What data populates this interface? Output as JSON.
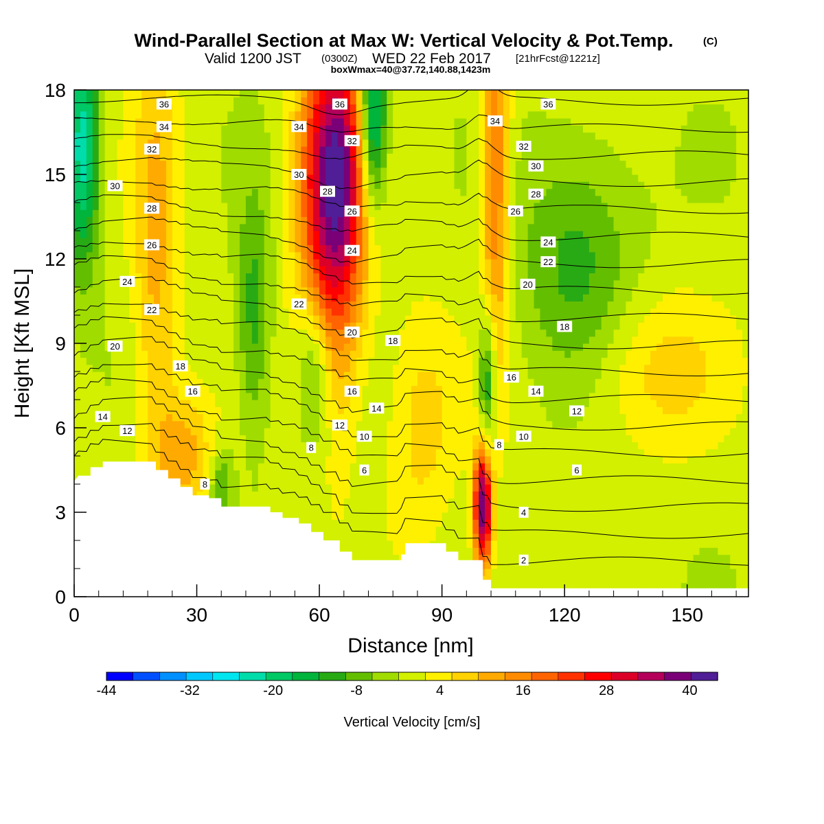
{
  "header": {
    "title": "Wind-Parallel Section at Max W: Vertical Velocity & Pot.Temp.",
    "title_mark": "(C)",
    "valid_prefix": "Valid 1200 JST",
    "valid_zulu": "(0300Z)",
    "valid_date": "WED 22 Feb 2017",
    "forecast": "[21hrFcst@1221z]",
    "box_info": "boxWmax=40@37.72,140.88,1423m"
  },
  "chart_data": {
    "type": "heatmap",
    "xlabel": "Distance [nm]",
    "ylabel": "Height [Kft MSL]",
    "xlim": [
      0,
      165
    ],
    "ylim": [
      0,
      18
    ],
    "x_ticks": [
      0,
      30,
      60,
      90,
      120,
      150
    ],
    "y_ticks": [
      0,
      3,
      6,
      9,
      12,
      15,
      18
    ],
    "colorbar": {
      "label": "Vertical Velocity [cm/s]",
      "levels": [
        -44,
        -40,
        -36,
        -32,
        -28,
        -24,
        -20,
        -16,
        -12,
        -8,
        -4,
        0,
        4,
        8,
        12,
        16,
        20,
        24,
        28,
        32,
        36,
        40,
        44
      ],
      "tick_labels": [
        -44,
        -32,
        -20,
        -8,
        4,
        16,
        28,
        40
      ],
      "colors": [
        "#0000ff",
        "#0050ff",
        "#0090ff",
        "#00c8ff",
        "#00e6f0",
        "#00dcaa",
        "#00c864",
        "#00b43c",
        "#28aa14",
        "#64be00",
        "#a0dc00",
        "#d2f000",
        "#fff000",
        "#ffd200",
        "#ffaa00",
        "#ff8c00",
        "#ff6400",
        "#ff3200",
        "#ff0000",
        "#dc0028",
        "#b4005a",
        "#7a0078",
        "#501e96"
      ]
    },
    "terrain": [
      [
        0,
        4.1
      ],
      [
        1,
        4.3
      ],
      [
        4,
        4.3
      ],
      [
        4,
        4.6
      ],
      [
        7,
        4.6
      ],
      [
        7,
        4.8
      ],
      [
        20,
        4.8
      ],
      [
        20,
        4.5
      ],
      [
        23,
        4.5
      ],
      [
        23,
        4.2
      ],
      [
        26,
        4.2
      ],
      [
        26,
        3.9
      ],
      [
        29,
        3.9
      ],
      [
        29,
        3.6
      ],
      [
        33,
        3.6
      ],
      [
        33,
        3.5
      ],
      [
        36,
        3.5
      ],
      [
        36,
        3.2
      ],
      [
        48,
        3.2
      ],
      [
        48,
        3.0
      ],
      [
        51,
        3.0
      ],
      [
        51,
        2.8
      ],
      [
        55,
        2.8
      ],
      [
        55,
        2.6
      ],
      [
        58,
        2.6
      ],
      [
        58,
        2.3
      ],
      [
        61,
        2.3
      ],
      [
        61,
        2.0
      ],
      [
        65,
        2.0
      ],
      [
        65,
        1.6
      ],
      [
        68,
        1.6
      ],
      [
        68,
        1.3
      ],
      [
        80,
        1.3
      ],
      [
        80,
        1.5
      ],
      [
        81,
        1.5
      ],
      [
        81,
        1.9
      ],
      [
        91,
        1.9
      ],
      [
        91,
        1.6
      ],
      [
        94,
        1.6
      ],
      [
        94,
        1.3
      ],
      [
        97,
        1.3
      ],
      [
        97,
        1.3
      ],
      [
        100,
        1.3
      ],
      [
        100,
        0.6
      ],
      [
        102,
        0.6
      ],
      [
        102,
        0.3
      ],
      [
        104,
        0.3
      ],
      [
        104,
        0.3
      ],
      [
        165,
        0.3
      ]
    ],
    "w_field_features": [
      {
        "x": 64,
        "z": 15.5,
        "w": 36,
        "sx": 6,
        "sz": 3.5
      },
      {
        "x": 63,
        "z": 11,
        "w": 16,
        "sx": 5,
        "sz": 4
      },
      {
        "x": 100,
        "z": 3.2,
        "w": 44,
        "sx": 1.6,
        "sz": 1.6
      },
      {
        "x": 103,
        "z": 15,
        "w": 20,
        "sx": 2.5,
        "sz": 5
      },
      {
        "x": 73,
        "z": 17,
        "w": -30,
        "sx": 2.5,
        "sz": 2.5
      },
      {
        "x": 2,
        "z": 16,
        "w": -24,
        "sx": 3,
        "sz": 3
      },
      {
        "x": 101,
        "z": 7.5,
        "w": -18,
        "sx": 1.5,
        "sz": 2
      },
      {
        "x": 59,
        "z": 8,
        "w": -14,
        "sx": 3,
        "sz": 2
      },
      {
        "x": 44,
        "z": 10,
        "w": -12,
        "sx": 3,
        "sz": 3
      },
      {
        "x": 123,
        "z": 12,
        "w": -11,
        "sx": 10,
        "sz": 3
      },
      {
        "x": 20,
        "z": 12,
        "w": 12,
        "sx": 4,
        "sz": 6
      },
      {
        "x": 27,
        "z": 5,
        "w": 12,
        "sx": 5,
        "sz": 1.5
      },
      {
        "x": 142,
        "z": 8,
        "w": 8,
        "sx": 12,
        "sz": 2
      },
      {
        "x": 36,
        "z": 4,
        "w": -10,
        "sx": 2,
        "sz": 1
      },
      {
        "x": 85,
        "z": 6,
        "w": 8,
        "sx": 6,
        "sz": 3
      }
    ],
    "theta_contours": {
      "levels": [
        2,
        4,
        6,
        8,
        10,
        12,
        14,
        16,
        18,
        20,
        22,
        24,
        26,
        28,
        30,
        32,
        34,
        36
      ],
      "labels": [
        {
          "text": "36",
          "x": 22,
          "y": 17.5
        },
        {
          "text": "34",
          "x": 22,
          "y": 16.7
        },
        {
          "text": "32",
          "x": 19,
          "y": 15.9
        },
        {
          "text": "30",
          "x": 10,
          "y": 14.6
        },
        {
          "text": "28",
          "x": 19,
          "y": 13.8
        },
        {
          "text": "26",
          "x": 19,
          "y": 12.5
        },
        {
          "text": "24",
          "x": 13,
          "y": 11.2
        },
        {
          "text": "22",
          "x": 19,
          "y": 10.2
        },
        {
          "text": "20",
          "x": 10,
          "y": 8.9
        },
        {
          "text": "18",
          "x": 26,
          "y": 8.2
        },
        {
          "text": "16",
          "x": 29,
          "y": 7.3
        },
        {
          "text": "14",
          "x": 7,
          "y": 6.4
        },
        {
          "text": "12",
          "x": 13,
          "y": 5.9
        },
        {
          "text": "8",
          "x": 32,
          "y": 4.0
        },
        {
          "text": "36",
          "x": 65,
          "y": 17.5
        },
        {
          "text": "34",
          "x": 55,
          "y": 16.7
        },
        {
          "text": "32",
          "x": 68,
          "y": 16.2
        },
        {
          "text": "30",
          "x": 55,
          "y": 15.0
        },
        {
          "text": "28",
          "x": 62,
          "y": 14.4
        },
        {
          "text": "26",
          "x": 68,
          "y": 13.7
        },
        {
          "text": "24",
          "x": 68,
          "y": 12.3
        },
        {
          "text": "22",
          "x": 55,
          "y": 10.4
        },
        {
          "text": "20",
          "x": 68,
          "y": 9.4
        },
        {
          "text": "18",
          "x": 78,
          "y": 9.1
        },
        {
          "text": "16",
          "x": 68,
          "y": 7.3
        },
        {
          "text": "14",
          "x": 74,
          "y": 6.7
        },
        {
          "text": "12",
          "x": 65,
          "y": 6.1
        },
        {
          "text": "10",
          "x": 71,
          "y": 5.7
        },
        {
          "text": "8",
          "x": 58,
          "y": 5.3
        },
        {
          "text": "6",
          "x": 71,
          "y": 4.5
        },
        {
          "text": "36",
          "x": 116,
          "y": 17.5
        },
        {
          "text": "34",
          "x": 103,
          "y": 16.9
        },
        {
          "text": "32",
          "x": 110,
          "y": 16.0
        },
        {
          "text": "30",
          "x": 113,
          "y": 15.3
        },
        {
          "text": "28",
          "x": 113,
          "y": 14.3
        },
        {
          "text": "26",
          "x": 108,
          "y": 13.7
        },
        {
          "text": "24",
          "x": 116,
          "y": 12.6
        },
        {
          "text": "22",
          "x": 116,
          "y": 11.9
        },
        {
          "text": "20",
          "x": 111,
          "y": 11.1
        },
        {
          "text": "18",
          "x": 120,
          "y": 9.6
        },
        {
          "text": "16",
          "x": 107,
          "y": 7.8
        },
        {
          "text": "14",
          "x": 113,
          "y": 7.3
        },
        {
          "text": "12",
          "x": 123,
          "y": 6.6
        },
        {
          "text": "10",
          "x": 110,
          "y": 5.7
        },
        {
          "text": "8",
          "x": 104,
          "y": 5.4
        },
        {
          "text": "6",
          "x": 123,
          "y": 4.5
        },
        {
          "text": "4",
          "x": 110,
          "y": 3.0
        },
        {
          "text": "2",
          "x": 110,
          "y": 1.3
        }
      ]
    }
  }
}
